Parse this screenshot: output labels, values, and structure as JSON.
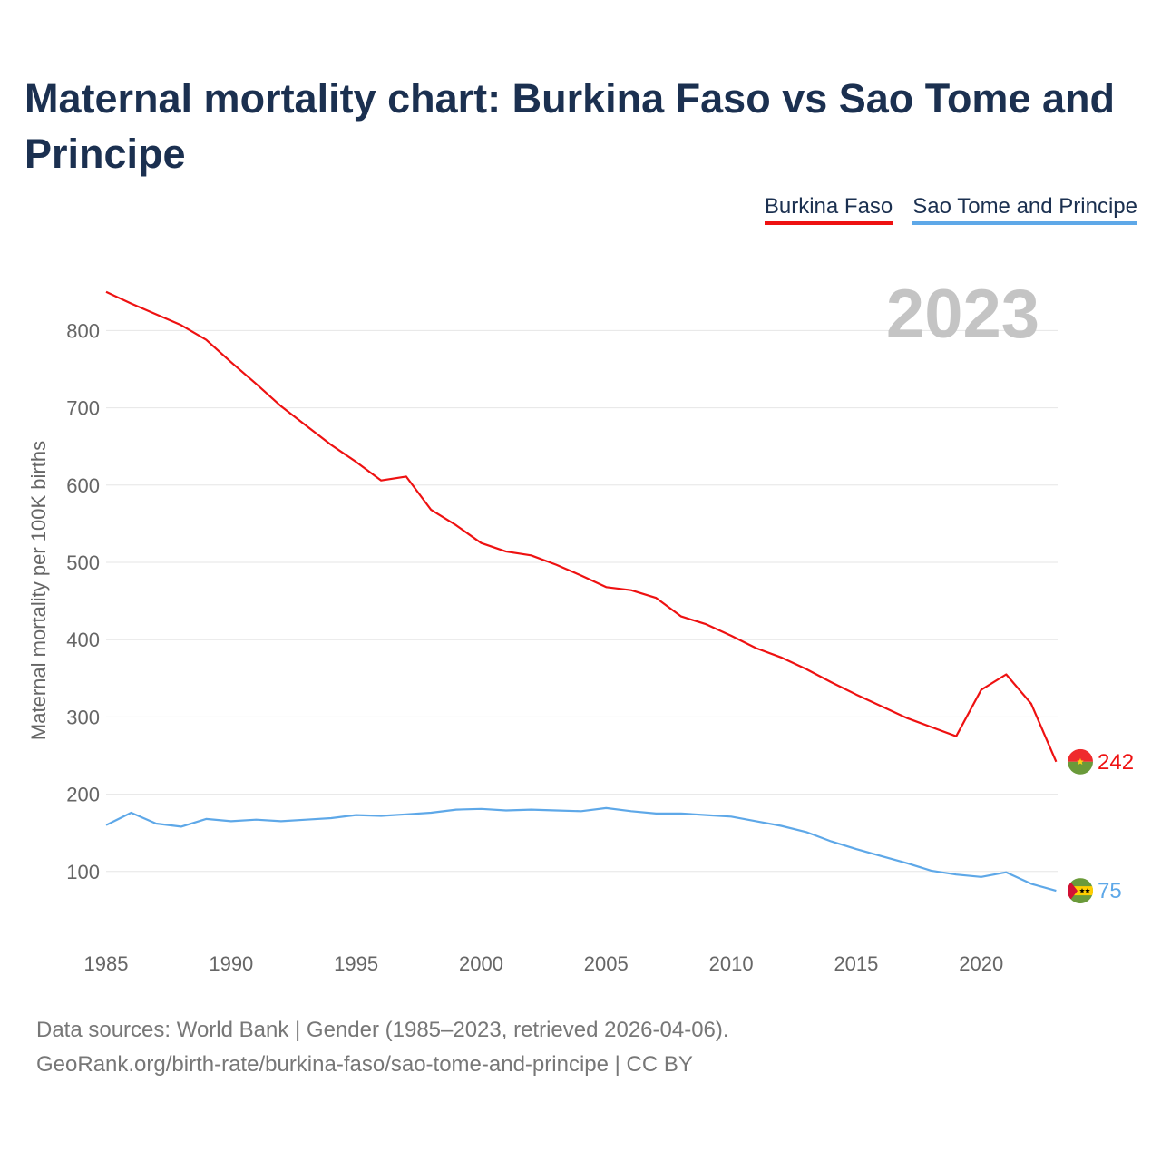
{
  "title": "Maternal mortality chart: Burkina Faso vs Sao Tome and Principe",
  "legend": {
    "burkina": "Burkina Faso",
    "sao_tome": "Sao Tome and Principe"
  },
  "footer": {
    "line1": "Data sources: World Bank | Gender (1985–2023, retrieved 2026-04-06).",
    "line2": "GeoRank.org/birth-rate/burkina-faso/sao-tome-and-principe | CC BY"
  },
  "colors": {
    "burkina": "#ee1111",
    "sao_tome": "#5ea8e8",
    "title": "#1b3050",
    "grid": "#e6e6e6",
    "year": "#c4c4c4"
  },
  "chart_data": {
    "type": "line",
    "title": "Maternal mortality chart: Burkina Faso vs Sao Tome and Principe",
    "year_label": "2023",
    "xlabel": "",
    "ylabel": "Maternal mortality per 100K births",
    "xlim": [
      1985,
      2023
    ],
    "ylim": [
      50,
      850
    ],
    "x_ticks": [
      1985,
      1990,
      1995,
      2000,
      2005,
      2010,
      2015,
      2020
    ],
    "y_ticks": [
      100,
      200,
      300,
      400,
      500,
      600,
      700,
      800
    ],
    "grid": true,
    "legend_position": "top-right",
    "x": [
      1985,
      1986,
      1987,
      1988,
      1989,
      1990,
      1991,
      1992,
      1993,
      1994,
      1995,
      1996,
      1997,
      1998,
      1999,
      2000,
      2001,
      2002,
      2003,
      2004,
      2005,
      2006,
      2007,
      2008,
      2009,
      2010,
      2011,
      2012,
      2013,
      2014,
      2015,
      2016,
      2017,
      2018,
      2019,
      2020,
      2021,
      2022,
      2023
    ],
    "series": [
      {
        "name": "Burkina Faso",
        "color": "#ee1111",
        "end_label": "242",
        "values": [
          850,
          835,
          821,
          807,
          788,
          759,
          731,
          702,
          677,
          652,
          630,
          606,
          611,
          568,
          548,
          525,
          514,
          509,
          497,
          483,
          468,
          464,
          454,
          430,
          420,
          405,
          389,
          377,
          362,
          345,
          329,
          314,
          299,
          287,
          275,
          335,
          355,
          317,
          242
        ]
      },
      {
        "name": "Sao Tome and Principe",
        "color": "#5ea8e8",
        "end_label": "75",
        "values": [
          160,
          176,
          162,
          158,
          168,
          165,
          167,
          165,
          167,
          169,
          173,
          172,
          174,
          176,
          180,
          181,
          179,
          180,
          179,
          178,
          182,
          178,
          175,
          175,
          173,
          171,
          165,
          159,
          151,
          139,
          129,
          120,
          111,
          101,
          96,
          93,
          99,
          84,
          75
        ]
      }
    ]
  }
}
